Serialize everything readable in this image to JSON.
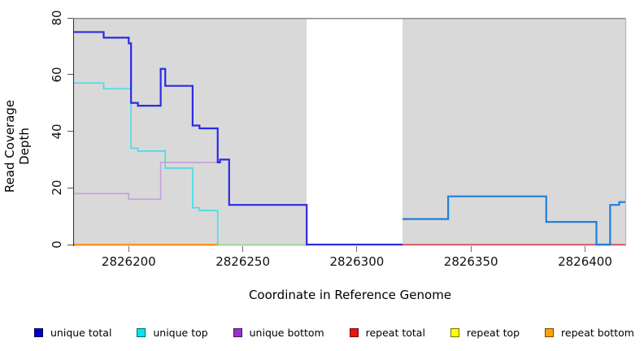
{
  "figure": {
    "ylabel": "Read Coverage Depth",
    "xlabel": "Coordinate in Reference Genome"
  },
  "chart_data": {
    "type": "line",
    "step": true,
    "grid": false,
    "xlim": [
      2826176,
      2826418
    ],
    "ylim": [
      0,
      80
    ],
    "x_ticks": [
      2826200,
      2826250,
      2826300,
      2826350,
      2826400
    ],
    "y_ticks": [
      0,
      20,
      40,
      60,
      80
    ],
    "xlabel": "Coordinate in Reference Genome",
    "ylabel": "Read Coverage Depth",
    "background": {
      "plot_fill": "#d9d9d9",
      "page_fill": "#ffffff",
      "gap_band": {
        "from": 2826278,
        "to": 2826320,
        "fill": "#ffffff"
      },
      "top_border_color": "#8a8a8a",
      "right_border_color": "#b5b5b5"
    },
    "series": [
      {
        "name": "repeat-zero-left",
        "legend": "repeat bottom",
        "color": "#ff9318",
        "width": 2,
        "points": [
          [
            2826176,
            0
          ],
          [
            2826239,
            0
          ]
        ]
      },
      {
        "name": "zero-line-mid",
        "legend": "",
        "color": "#a8d8a8",
        "width": 1.8,
        "points": [
          [
            2826239,
            0
          ],
          [
            2826278,
            0
          ]
        ]
      },
      {
        "name": "repeat-total-zero-right",
        "legend": "repeat total",
        "color": "#dc5264",
        "width": 1.8,
        "points": [
          [
            2826320,
            0
          ],
          [
            2826418,
            0
          ]
        ]
      },
      {
        "name": "unique-bottom",
        "legend": "unique bottom",
        "color": "#c8a2dc",
        "width": 1.7,
        "points": [
          [
            2826176,
            18
          ],
          [
            2826200,
            16
          ],
          [
            2826214,
            29
          ],
          [
            2826239,
            29
          ]
        ]
      },
      {
        "name": "unique-top",
        "legend": "unique top",
        "color": "#49dde6",
        "width": 1.7,
        "points": [
          [
            2826176,
            57
          ],
          [
            2826189,
            55
          ],
          [
            2826201,
            34
          ],
          [
            2826204,
            33
          ],
          [
            2826216,
            27
          ],
          [
            2826228,
            13
          ],
          [
            2826231,
            12
          ],
          [
            2826239,
            0
          ]
        ]
      },
      {
        "name": "unique-total-left",
        "legend": "unique total",
        "color": "#2b2be2",
        "width": 2.2,
        "points": [
          [
            2826176,
            75
          ],
          [
            2826189,
            73
          ],
          [
            2826200,
            71
          ],
          [
            2826201,
            50
          ],
          [
            2826204,
            49
          ],
          [
            2826214,
            62
          ],
          [
            2826216,
            56
          ],
          [
            2826228,
            42
          ],
          [
            2826231,
            41
          ],
          [
            2826239,
            29
          ],
          [
            2826240,
            30
          ],
          [
            2826244,
            14
          ],
          [
            2826278,
            0
          ],
          [
            2826320,
            0
          ]
        ]
      },
      {
        "name": "total-right",
        "legend": "",
        "color": "#1f7fdc",
        "width": 2.2,
        "points": [
          [
            2826320,
            9
          ],
          [
            2826340,
            17
          ],
          [
            2826383,
            8
          ],
          [
            2826405,
            0
          ],
          [
            2826411,
            14
          ],
          [
            2826415,
            15
          ],
          [
            2826418,
            15
          ]
        ]
      }
    ],
    "legend_position": "bottom",
    "legend": [
      {
        "label": "unique total",
        "color": "#0000cc"
      },
      {
        "label": "unique top",
        "color": "#00e5ee"
      },
      {
        "label": "unique bottom",
        "color": "#9a30cc"
      },
      {
        "label": "repeat total",
        "color": "#ee1111"
      },
      {
        "label": "repeat top",
        "color": "#ffff00"
      },
      {
        "label": "repeat bottom",
        "color": "#ffa200"
      }
    ]
  }
}
